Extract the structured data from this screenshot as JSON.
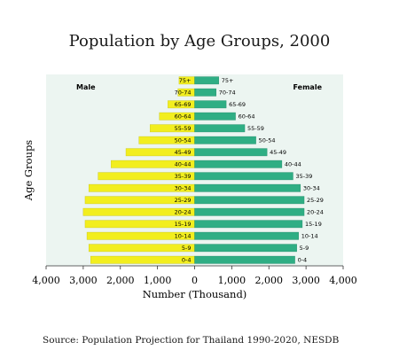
{
  "title": "Population by Age Groups, 2000",
  "source": "Source:  Population Projection for Thailand 1990-2020, NESDB",
  "chart_data": {
    "type": "bar",
    "orientation": "horizontal-pyramid",
    "title": "Population by Age Groups, 2000",
    "xlabel": "Number (Thousand)",
    "ylabel": "Age Groups",
    "xlim": [
      -4000,
      4000
    ],
    "x_tick_values": [
      -4000,
      -3000,
      -2000,
      -1000,
      0,
      1000,
      2000,
      3000,
      4000
    ],
    "x_tick_labels": [
      "4,000",
      "3,000",
      "2,000",
      "1,000",
      "0",
      "1,000",
      "2,000",
      "3,000",
      "4,000"
    ],
    "categories": [
      "0-4",
      "5-9",
      "10-14",
      "15-19",
      "20-24",
      "25-29",
      "30-34",
      "35-39",
      "40-44",
      "45-49",
      "50-54",
      "55-59",
      "60-64",
      "65-69",
      "70-74",
      "75+"
    ],
    "series": [
      {
        "name": "Male",
        "color": "#f2ee1e",
        "values": [
          2800,
          2850,
          2900,
          2950,
          3000,
          2950,
          2850,
          2600,
          2250,
          1850,
          1500,
          1200,
          950,
          720,
          450,
          420
        ]
      },
      {
        "name": "Female",
        "color": "#2fae84",
        "values": [
          2700,
          2750,
          2800,
          2900,
          2950,
          2950,
          2850,
          2650,
          2350,
          1950,
          1650,
          1350,
          1100,
          850,
          580,
          650
        ]
      }
    ],
    "legend": "inside-top-corners",
    "grid": false,
    "plot_background": "#ecf5f1"
  }
}
